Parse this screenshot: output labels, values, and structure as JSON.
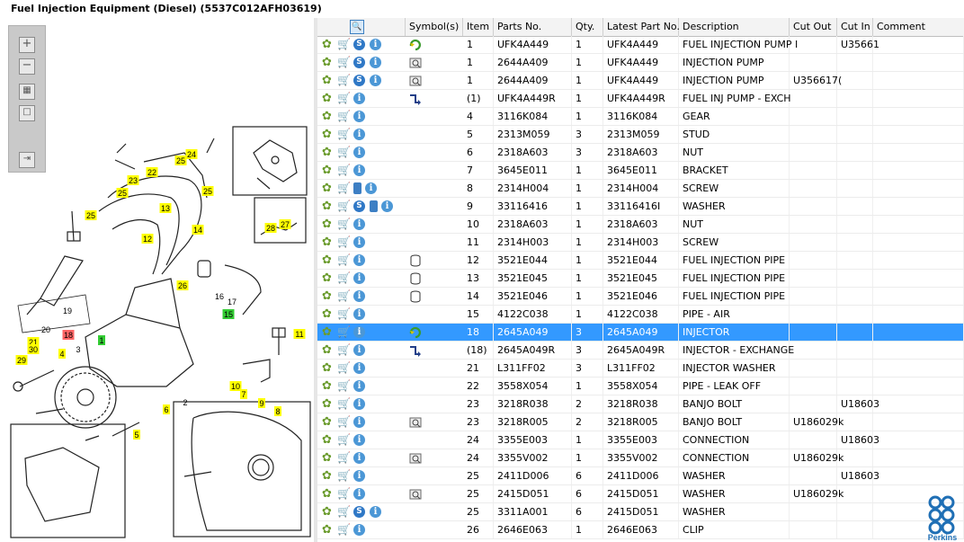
{
  "window": {
    "title": "Fuel Injection Equipment (Diesel) (5537C012AFH03619)"
  },
  "diagram": {
    "callouts": [
      "24",
      "23",
      "22",
      "25",
      "25",
      "25",
      "13",
      "25",
      "12",
      "14",
      "26",
      "28",
      "27",
      "16",
      "17",
      "15",
      "20",
      "19",
      "18",
      "1",
      "21",
      "30",
      "4",
      "29",
      "3",
      "11",
      "2",
      "10",
      "7",
      "9",
      "8",
      "6",
      "5"
    ]
  },
  "table": {
    "columns": [
      "Symbol(s)",
      "Item",
      "Parts No.",
      "Qty.",
      "Latest Part No.",
      "Description",
      "Cut Out",
      "Cut In",
      "Comment"
    ],
    "rows": [
      {
        "icons": "gcsi0",
        "sym": "exch",
        "item": "1",
        "part": "UFK4A449",
        "qty": "1",
        "latest": "UFK4A449",
        "desc": "FUEL INJECTION PUMP I",
        "out": "",
        "in": "U35661"
      },
      {
        "icons": "gcsi",
        "sym": "mag",
        "item": "1",
        "part": "2644A409",
        "qty": "1",
        "latest": "UFK4A449",
        "desc": "INJECTION PUMP",
        "out": "",
        "in": ""
      },
      {
        "icons": "gcsi",
        "sym": "mag",
        "item": "1",
        "part": "2644A409",
        "qty": "1",
        "latest": "UFK4A449",
        "desc": "INJECTION PUMP",
        "out": "U356617(",
        "in": ""
      },
      {
        "icons": "gci",
        "sym": "arrow",
        "item": "(1)",
        "part": "UFK4A449R",
        "qty": "1",
        "latest": "UFK4A449R",
        "desc": "FUEL INJ PUMP - EXCH",
        "out": "",
        "in": ""
      },
      {
        "icons": "gci",
        "sym": "",
        "item": "4",
        "part": "3116K084",
        "qty": "1",
        "latest": "3116K084",
        "desc": "GEAR",
        "out": "",
        "in": ""
      },
      {
        "icons": "gci",
        "sym": "",
        "item": "5",
        "part": "2313M059",
        "qty": "3",
        "latest": "2313M059",
        "desc": "STUD",
        "out": "",
        "in": ""
      },
      {
        "icons": "gci",
        "sym": "",
        "item": "6",
        "part": "2318A603",
        "qty": "3",
        "latest": "2318A603",
        "desc": "NUT",
        "out": "",
        "in": ""
      },
      {
        "icons": "gci",
        "sym": "",
        "item": "7",
        "part": "3645E011",
        "qty": "1",
        "latest": "3645E011",
        "desc": "BRACKET",
        "out": "",
        "in": ""
      },
      {
        "icons": "gcbi",
        "sym": "",
        "item": "8",
        "part": "2314H004",
        "qty": "1",
        "latest": "2314H004",
        "desc": "SCREW",
        "out": "",
        "in": ""
      },
      {
        "icons": "gcsbi",
        "sym": "",
        "item": "9",
        "part": "33116416",
        "qty": "1",
        "latest": "33116416I",
        "desc": "WASHER",
        "out": "",
        "in": ""
      },
      {
        "icons": "gci",
        "sym": "",
        "item": "10",
        "part": "2318A603",
        "qty": "1",
        "latest": "2318A603",
        "desc": "NUT",
        "out": "",
        "in": ""
      },
      {
        "icons": "gci",
        "sym": "",
        "item": "11",
        "part": "2314H003",
        "qty": "1",
        "latest": "2314H003",
        "desc": "SCREW",
        "out": "",
        "in": ""
      },
      {
        "icons": "gci",
        "sym": "cyl",
        "item": "12",
        "part": "3521E044",
        "qty": "1",
        "latest": "3521E044",
        "desc": "FUEL INJECTION PIPE",
        "out": "",
        "in": ""
      },
      {
        "icons": "gci",
        "sym": "cyl",
        "item": "13",
        "part": "3521E045",
        "qty": "1",
        "latest": "3521E045",
        "desc": "FUEL INJECTION PIPE",
        "out": "",
        "in": ""
      },
      {
        "icons": "gci",
        "sym": "cyl",
        "item": "14",
        "part": "3521E046",
        "qty": "1",
        "latest": "3521E046",
        "desc": "FUEL INJECTION PIPE",
        "out": "",
        "in": ""
      },
      {
        "icons": "gci",
        "sym": "",
        "item": "15",
        "part": "4122C038",
        "qty": "1",
        "latest": "4122C038",
        "desc": "PIPE - AIR",
        "out": "",
        "in": ""
      },
      {
        "icons": "gci",
        "sym": "exch",
        "item": "18",
        "part": "2645A049",
        "qty": "3",
        "latest": "2645A049",
        "desc": "INJECTOR",
        "out": "",
        "in": "",
        "selected": true
      },
      {
        "icons": "gci",
        "sym": "arrow",
        "item": "(18)",
        "part": "2645A049R",
        "qty": "3",
        "latest": "2645A049R",
        "desc": "INJECTOR - EXCHANGE",
        "out": "",
        "in": ""
      },
      {
        "icons": "gci",
        "sym": "",
        "item": "21",
        "part": "L311FF02",
        "qty": "3",
        "latest": "L311FF02",
        "desc": "INJECTOR WASHER",
        "out": "",
        "in": ""
      },
      {
        "icons": "gci",
        "sym": "",
        "item": "22",
        "part": "3558X054",
        "qty": "1",
        "latest": "3558X054",
        "desc": "PIPE - LEAK OFF",
        "out": "",
        "in": ""
      },
      {
        "icons": "gci",
        "sym": "",
        "item": "23",
        "part": "3218R038",
        "qty": "2",
        "latest": "3218R038",
        "desc": "BANJO BOLT",
        "out": "",
        "in": "U18603"
      },
      {
        "icons": "gci",
        "sym": "mag",
        "item": "23",
        "part": "3218R005",
        "qty": "2",
        "latest": "3218R005",
        "desc": "BANJO BOLT",
        "out": "U186029k",
        "in": ""
      },
      {
        "icons": "gci",
        "sym": "",
        "item": "24",
        "part": "3355E003",
        "qty": "1",
        "latest": "3355E003",
        "desc": "CONNECTION",
        "out": "",
        "in": "U18603"
      },
      {
        "icons": "gci",
        "sym": "mag",
        "item": "24",
        "part": "3355V002",
        "qty": "1",
        "latest": "3355V002",
        "desc": "CONNECTION",
        "out": "U186029k",
        "in": ""
      },
      {
        "icons": "gci",
        "sym": "",
        "item": "25",
        "part": "2411D006",
        "qty": "6",
        "latest": "2411D006",
        "desc": "WASHER",
        "out": "",
        "in": "U18603"
      },
      {
        "icons": "gci",
        "sym": "mag",
        "item": "25",
        "part": "2415D051",
        "qty": "6",
        "latest": "2415D051",
        "desc": "WASHER",
        "out": "U186029k",
        "in": ""
      },
      {
        "icons": "gcsi",
        "sym": "",
        "item": "25",
        "part": "3311A001",
        "qty": "6",
        "latest": "2415D051",
        "desc": "WASHER",
        "out": "",
        "in": ""
      },
      {
        "icons": "gci",
        "sym": "",
        "item": "26",
        "part": "2646E063",
        "qty": "1",
        "latest": "2646E063",
        "desc": "CLIP",
        "out": "",
        "in": ""
      }
    ]
  },
  "brand": {
    "name": "Perkins",
    "color": "#1f6fb5"
  },
  "accent": {
    "selected": "#3399ff",
    "callout": "#ffff00",
    "callout_green": "#33cc33",
    "callout_red": "#ff6666"
  }
}
